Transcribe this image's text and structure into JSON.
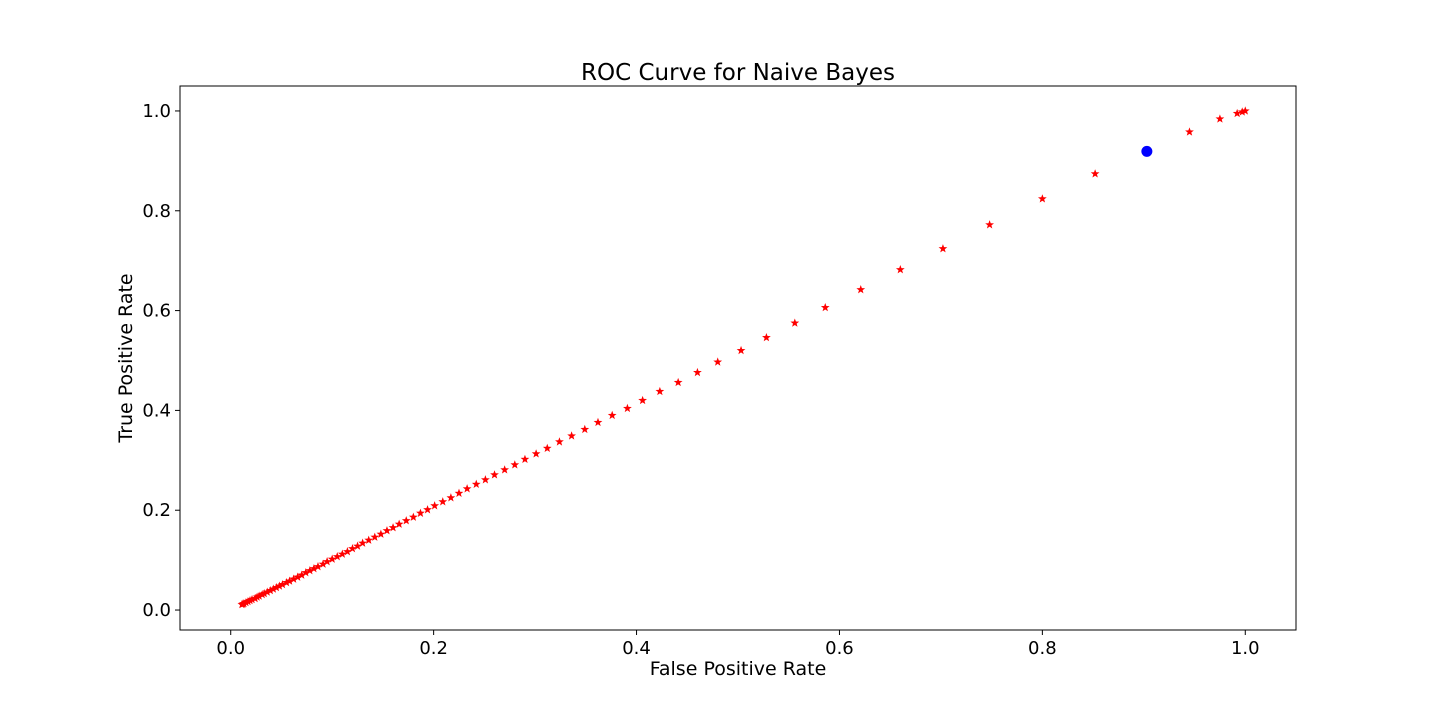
{
  "chart_data": {
    "type": "scatter",
    "title": "ROC Curve for Naive Bayes",
    "xlabel": "False Positive Rate",
    "ylabel": "True Positive Rate",
    "xlim": [
      -0.05,
      1.05
    ],
    "ylim": [
      -0.04,
      1.05
    ],
    "xticks": [
      0.0,
      0.2,
      0.4,
      0.6,
      0.8,
      1.0
    ],
    "xtick_labels": [
      "0.0",
      "0.2",
      "0.4",
      "0.6",
      "0.8",
      "1.0"
    ],
    "yticks": [
      0.0,
      0.2,
      0.4,
      0.6,
      0.8,
      1.0
    ],
    "ytick_labels": [
      "0.0",
      "0.2",
      "0.4",
      "0.6",
      "0.8",
      "1.0"
    ],
    "grid": false,
    "legend": "none",
    "series": [
      {
        "marker": "star",
        "color": "#ff0000",
        "points": [
          [
            1.0,
            1.0
          ],
          [
            0.997,
            0.998
          ],
          [
            0.992,
            0.995
          ],
          [
            0.975,
            0.984
          ],
          [
            0.945,
            0.958
          ],
          [
            0.852,
            0.874
          ],
          [
            0.8,
            0.824
          ],
          [
            0.748,
            0.772
          ],
          [
            0.702,
            0.724
          ],
          [
            0.66,
            0.682
          ],
          [
            0.621,
            0.642
          ],
          [
            0.586,
            0.606
          ],
          [
            0.556,
            0.575
          ],
          [
            0.528,
            0.546
          ],
          [
            0.503,
            0.52
          ],
          [
            0.48,
            0.497
          ],
          [
            0.46,
            0.476
          ],
          [
            0.441,
            0.456
          ],
          [
            0.423,
            0.438
          ],
          [
            0.406,
            0.42
          ],
          [
            0.391,
            0.404
          ],
          [
            0.376,
            0.39
          ],
          [
            0.362,
            0.376
          ],
          [
            0.349,
            0.362
          ],
          [
            0.336,
            0.349
          ],
          [
            0.324,
            0.337
          ],
          [
            0.312,
            0.324
          ],
          [
            0.301,
            0.313
          ],
          [
            0.29,
            0.302
          ],
          [
            0.28,
            0.291
          ],
          [
            0.27,
            0.281
          ],
          [
            0.26,
            0.271
          ],
          [
            0.251,
            0.261
          ],
          [
            0.242,
            0.252
          ],
          [
            0.233,
            0.243
          ],
          [
            0.225,
            0.234
          ],
          [
            0.217,
            0.225
          ],
          [
            0.209,
            0.217
          ],
          [
            0.201,
            0.209
          ],
          [
            0.194,
            0.201
          ],
          [
            0.187,
            0.194
          ],
          [
            0.18,
            0.186
          ],
          [
            0.173,
            0.179
          ],
          [
            0.166,
            0.172
          ],
          [
            0.16,
            0.165
          ],
          [
            0.154,
            0.159
          ],
          [
            0.148,
            0.152
          ],
          [
            0.142,
            0.146
          ],
          [
            0.136,
            0.14
          ],
          [
            0.13,
            0.134
          ],
          [
            0.125,
            0.128
          ],
          [
            0.12,
            0.123
          ],
          [
            0.115,
            0.117
          ],
          [
            0.11,
            0.112
          ],
          [
            0.105,
            0.107
          ],
          [
            0.1,
            0.102
          ],
          [
            0.095,
            0.097
          ],
          [
            0.091,
            0.092
          ],
          [
            0.086,
            0.087
          ],
          [
            0.082,
            0.083
          ],
          [
            0.078,
            0.079
          ],
          [
            0.074,
            0.075
          ],
          [
            0.07,
            0.07
          ],
          [
            0.066,
            0.066
          ],
          [
            0.062,
            0.062
          ],
          [
            0.058,
            0.058
          ],
          [
            0.055,
            0.055
          ],
          [
            0.051,
            0.051
          ],
          [
            0.048,
            0.048
          ],
          [
            0.045,
            0.045
          ],
          [
            0.042,
            0.042
          ],
          [
            0.039,
            0.039
          ],
          [
            0.036,
            0.036
          ],
          [
            0.033,
            0.033
          ],
          [
            0.031,
            0.031
          ],
          [
            0.028,
            0.028
          ],
          [
            0.026,
            0.026
          ],
          [
            0.024,
            0.023
          ],
          [
            0.021,
            0.021
          ],
          [
            0.019,
            0.019
          ],
          [
            0.017,
            0.017
          ],
          [
            0.015,
            0.015
          ],
          [
            0.013,
            0.013
          ],
          [
            0.012,
            0.012
          ],
          [
            0.011,
            0.011
          ]
        ]
      },
      {
        "marker": "circle",
        "color": "#0000ff",
        "points": [
          [
            0.903,
            0.919
          ]
        ]
      }
    ]
  }
}
